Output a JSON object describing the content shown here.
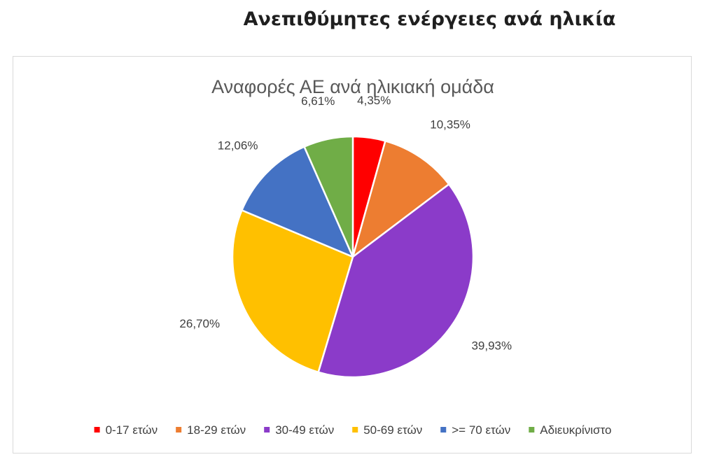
{
  "page": {
    "heading": "Ανεπιθύμητες ενέργειες ανά ηλικία"
  },
  "chart_data": {
    "type": "pie",
    "title": "Αναφορές ΑΕ ανά ηλικιακή ομάδα",
    "start_angle_deg": 0,
    "direction": "clockwise",
    "legend_position": "bottom",
    "slices": [
      {
        "label": "0-17 ετών",
        "value": 4.35,
        "display": "4,35%",
        "color": "#ff0000"
      },
      {
        "label": "18-29 ετών",
        "value": 10.35,
        "display": "10,35%",
        "color": "#ed7d31"
      },
      {
        "label": "30-49 ετών",
        "value": 39.93,
        "display": "39,93%",
        "color": "#8b3bc9"
      },
      {
        "label": "50-69 ετών",
        "value": 26.7,
        "display": "26,70%",
        "color": "#ffc000"
      },
      {
        "label": ">= 70 ετών",
        "value": 12.06,
        "display": "12,06%",
        "color": "#4472c4"
      },
      {
        "label": "Αδιευκρίνιστο",
        "value": 6.61,
        "display": "6,61%",
        "color": "#70ad47"
      }
    ]
  }
}
